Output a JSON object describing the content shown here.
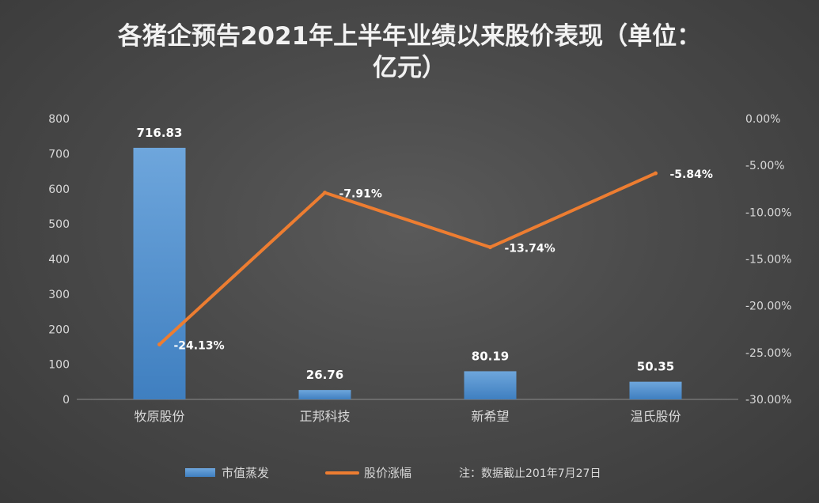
{
  "chart_data": {
    "type": "bar",
    "title_line1": "各猪企预告2021年上半年业绩以来股价表现（单位：",
    "title_line2": "亿元）",
    "categories": [
      "牧原股份",
      "正邦科技",
      "新希望",
      "温氏股份"
    ],
    "series": [
      {
        "name": "市值蒸发",
        "type": "bar",
        "axis": "left",
        "values": [
          716.83,
          26.76,
          80.19,
          50.35
        ],
        "labels": [
          "716.83",
          "26.76",
          "80.19",
          "50.35"
        ]
      },
      {
        "name": "股价涨幅",
        "type": "line",
        "axis": "right",
        "values": [
          -24.13,
          -7.91,
          -13.74,
          -5.84
        ],
        "labels": [
          "-24.13%",
          "-7.91%",
          "-13.74%",
          "-5.84%"
        ]
      }
    ],
    "y_left": {
      "min": 0,
      "max": 800,
      "step": 100,
      "ticks": [
        "0",
        "100",
        "200",
        "300",
        "400",
        "500",
        "600",
        "700",
        "800"
      ]
    },
    "y_right": {
      "min": -30,
      "max": 0,
      "step": 5,
      "ticks": [
        "-30.00%",
        "-25.00%",
        "-20.00%",
        "-15.00%",
        "-10.00%",
        "-5.00%",
        "0.00%"
      ]
    },
    "legend_position": "bottom",
    "note": "注：数据截止201年7月27日",
    "colors": {
      "bar": "#5b9bd5",
      "line": "#ed7d31",
      "text": "#ffffff",
      "axis_text": "#d9d9d9"
    }
  }
}
